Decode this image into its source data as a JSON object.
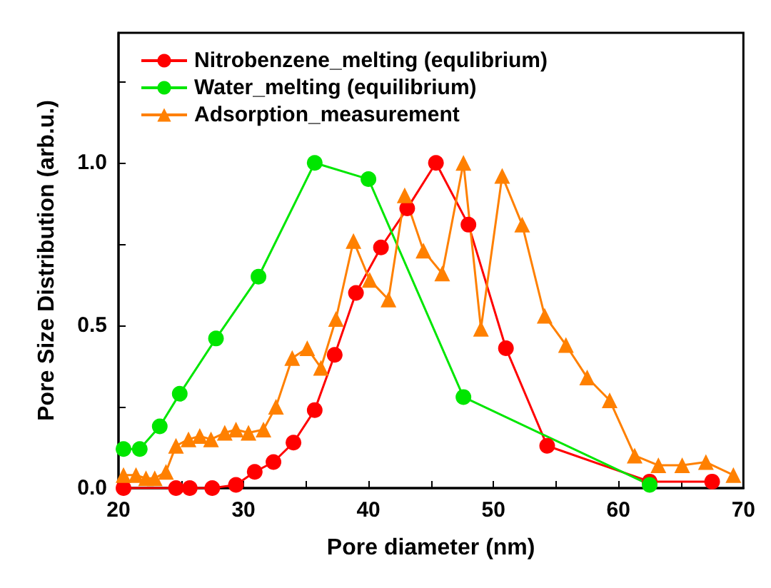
{
  "chart_data": {
    "type": "line",
    "xlabel": "Pore diameter (nm)",
    "ylabel": "Pore Size Distribution (arb.u.)",
    "xlim": [
      20,
      70
    ],
    "xticks": [
      20,
      {
        "value": 25,
        "label": null
      },
      30,
      {
        "value": 35,
        "label": null
      },
      40,
      {
        "value": 45,
        "label": null
      },
      50,
      {
        "value": 55,
        "label": null
      },
      60,
      {
        "value": 65,
        "label": null
      },
      70
    ],
    "ylim": [
      0,
      1.4
    ],
    "yticks": [
      {
        "value": 0,
        "label": "0.0"
      },
      {
        "value": 0.25,
        "label": null
      },
      {
        "value": 0.5,
        "label": "0.5"
      },
      {
        "value": 0.75,
        "label": null
      },
      {
        "value": 1,
        "label": "1.0"
      },
      {
        "value": 1.25,
        "label": null
      }
    ],
    "legend": "top left",
    "grid": false,
    "line_style": "solid",
    "series": [
      {
        "name": "Nitrobenzene_melting (equlibrium)",
        "color": "#ff0000",
        "marker": "circle",
        "x": [
          20.4,
          24.6,
          25.7,
          27.5,
          29.4,
          30.9,
          32.4,
          34.0,
          35.7,
          37.3,
          39.0,
          41.0,
          43.1,
          45.4,
          48.0,
          51.0,
          54.3,
          62.5,
          67.5
        ],
        "values": [
          0,
          0,
          0,
          0,
          0.01,
          0.05,
          0.08,
          0.14,
          0.24,
          0.41,
          0.6,
          0.74,
          0.86,
          1.0,
          0.81,
          0.43,
          0.13,
          0.02,
          0.02
        ]
      },
      {
        "name": "Water_melting (equilibrium)",
        "color": "#00e600",
        "marker": "circle",
        "x": [
          20.4,
          21.7,
          23.3,
          24.9,
          27.8,
          31.2,
          35.7,
          40.0,
          47.6,
          62.5
        ],
        "values": [
          0.12,
          0.12,
          0.19,
          0.29,
          0.46,
          0.65,
          1.0,
          0.95,
          0.28,
          0.01
        ]
      },
      {
        "name": "Adsorption_measurement",
        "color": "#ff8000",
        "marker": "triangle",
        "x": [
          20.4,
          21.4,
          22.2,
          22.9,
          23.8,
          24.6,
          25.6,
          26.5,
          27.4,
          28.5,
          29.4,
          30.4,
          31.6,
          32.6,
          33.9,
          35.1,
          36.2,
          37.4,
          38.8,
          40.1,
          41.6,
          42.9,
          44.4,
          45.9,
          47.6,
          49.0,
          50.7,
          52.3,
          54.1,
          55.8,
          57.5,
          59.3,
          61.3,
          63.2,
          65.1,
          67.0,
          69.2
        ],
        "values": [
          0.04,
          0.04,
          0.03,
          0.03,
          0.05,
          0.13,
          0.15,
          0.16,
          0.15,
          0.17,
          0.18,
          0.17,
          0.18,
          0.25,
          0.4,
          0.43,
          0.37,
          0.52,
          0.76,
          0.64,
          0.58,
          0.9,
          0.73,
          0.66,
          1.0,
          0.49,
          0.96,
          0.81,
          0.53,
          0.44,
          0.34,
          0.27,
          0.1,
          0.07,
          0.07,
          0.08,
          0.04
        ]
      }
    ]
  }
}
